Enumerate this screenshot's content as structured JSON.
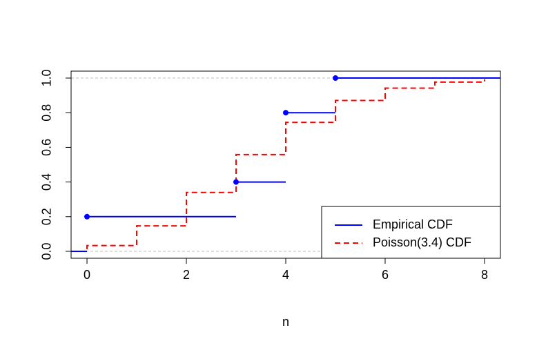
{
  "chart_data": {
    "type": "line",
    "xlabel": "n",
    "ylabel": "",
    "xlim": [
      -0.32,
      8.32
    ],
    "ylim": [
      -0.04,
      1.04
    ],
    "x_ticks": [
      0,
      2,
      4,
      6,
      8
    ],
    "y_ticks": [
      0.0,
      0.2,
      0.4,
      0.6,
      0.8,
      1.0
    ],
    "x_tick_labels": [
      "0",
      "2",
      "4",
      "6",
      "8"
    ],
    "y_tick_labels": [
      "0.0",
      "0.2",
      "0.4",
      "0.6",
      "0.8",
      "1.0"
    ],
    "reference_lines": [
      0,
      1
    ],
    "legend_position": "bottom-right",
    "series": [
      {
        "name": "Empirical CDF",
        "style": "solid",
        "color": "#0000FF",
        "steps": [
          {
            "x_start": -0.32,
            "x_end": 0,
            "y": 0.0,
            "point": false
          },
          {
            "x_start": 0,
            "x_end": 3,
            "y": 0.2,
            "point": true
          },
          {
            "x_start": 3,
            "x_end": 4,
            "y": 0.4,
            "point": true
          },
          {
            "x_start": 4,
            "x_end": 5,
            "y": 0.8,
            "point": true
          },
          {
            "x_start": 5,
            "x_end": 8.32,
            "y": 1.0,
            "point": true
          }
        ]
      },
      {
        "name": "Poisson(3.4) CDF",
        "style": "dashed",
        "color": "#FF0000",
        "x": [
          0,
          1,
          2,
          3,
          4,
          5,
          6,
          7,
          8
        ],
        "y": [
          0.0334,
          0.1468,
          0.3397,
          0.5584,
          0.7442,
          0.8705,
          0.9421,
          0.9769,
          0.9917
        ]
      }
    ]
  }
}
